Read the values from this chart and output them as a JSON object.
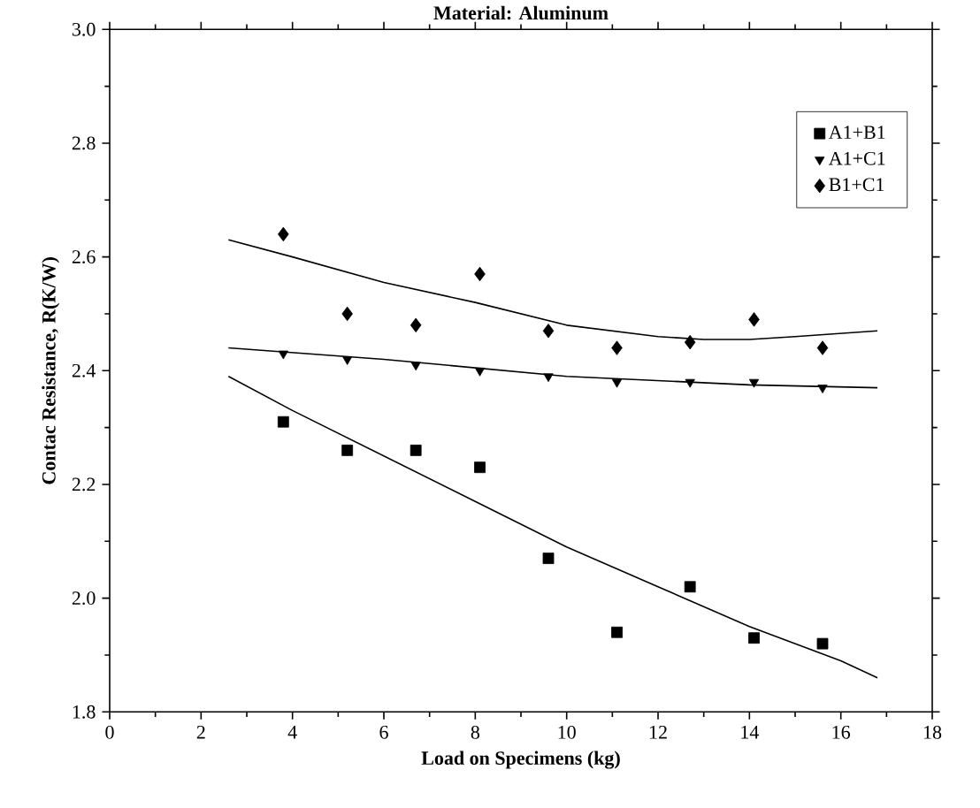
{
  "chart_data": {
    "type": "scatter",
    "title": "Material: Aluminum",
    "xlabel": "Load on Specimens (kg)",
    "ylabel": "Contac Resistance, R(K/W)",
    "xlim": [
      0,
      18
    ],
    "xticks": [
      0,
      2,
      4,
      6,
      8,
      10,
      12,
      14,
      16,
      18
    ],
    "ylim": [
      1.8,
      3.0
    ],
    "yticks": [
      {
        "value": 1.8,
        "label": "1.8"
      },
      {
        "value": 2.0,
        "label": "2.0"
      },
      {
        "value": 2.2,
        "label": "2.2"
      },
      {
        "value": 2.4,
        "label": "2.4"
      },
      {
        "value": 2.6,
        "label": "2.6"
      },
      {
        "value": 2.8,
        "label": "2.8"
      },
      {
        "value": 3.0,
        "label": "3.0"
      }
    ],
    "grid": false,
    "legend": "top right",
    "x": [
      3.8,
      5.2,
      6.7,
      8.1,
      9.6,
      11.1,
      12.7,
      14.1,
      15.6
    ],
    "series": [
      {
        "name": "A1+B1",
        "color": "#000000",
        "marker": "square",
        "values": [
          2.31,
          2.26,
          2.26,
          2.23,
          2.07,
          1.94,
          2.02,
          1.93,
          1.92
        ]
      },
      {
        "name": "A1+C1",
        "color": "#000000",
        "marker": "triangle",
        "values": [
          2.43,
          2.42,
          2.41,
          2.4,
          2.39,
          2.38,
          2.38,
          2.38,
          2.37
        ]
      },
      {
        "name": "B1+C1",
        "color": "#000000",
        "marker": "diamond",
        "values": [
          2.64,
          2.5,
          2.48,
          2.57,
          2.47,
          2.44,
          2.45,
          2.49,
          2.44
        ]
      },
      {
        "type": "line",
        "color": "#000000",
        "line_style": "solid",
        "x": [
          2.6,
          4,
          6,
          8,
          10,
          12,
          14,
          16,
          16.8
        ],
        "values": [
          2.39,
          2.33,
          2.25,
          2.17,
          2.09,
          2.02,
          1.95,
          1.89,
          1.86
        ]
      },
      {
        "type": "line",
        "color": "#000000",
        "line_style": "solid",
        "x": [
          2.6,
          6,
          10,
          14,
          16.8
        ],
        "values": [
          2.44,
          2.42,
          2.39,
          2.375,
          2.37
        ]
      },
      {
        "type": "line",
        "color": "#000000",
        "line_style": "solid",
        "x": [
          2.6,
          4,
          6,
          8,
          10,
          12,
          13,
          14,
          15,
          16.8
        ],
        "values": [
          2.63,
          2.6,
          2.555,
          2.52,
          2.48,
          2.46,
          2.455,
          2.455,
          2.46,
          2.47
        ]
      }
    ]
  }
}
